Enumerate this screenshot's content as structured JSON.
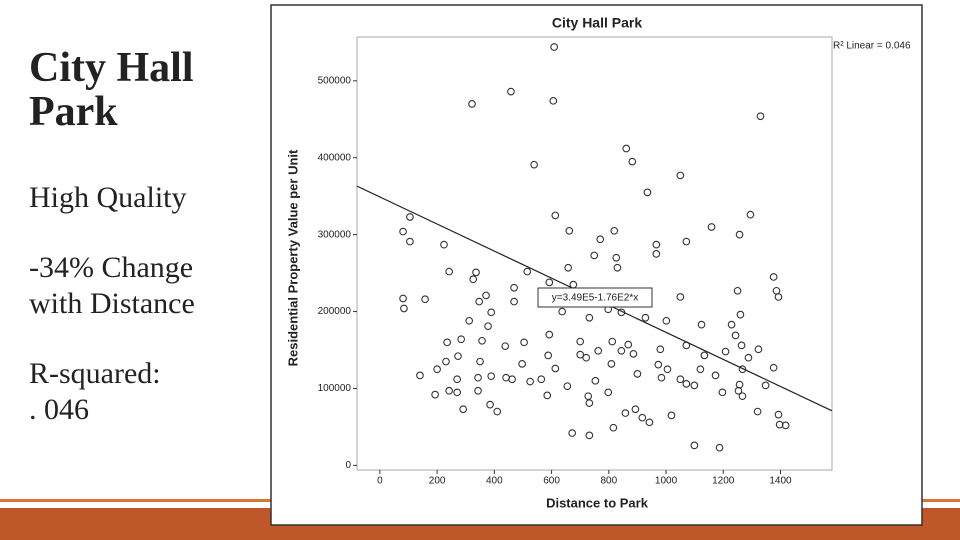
{
  "slide": {
    "title": "City Hall\nPark",
    "points": [
      "High Quality",
      "-34% Change\nwith Distance",
      "R-squared:\n. 046"
    ]
  },
  "chart_data": {
    "type": "scatter",
    "title": "City Hall Park",
    "x_label": "Distance to Park",
    "y_label": "Residential Property Value per Unit",
    "r2_label": "R² Linear = 0.046",
    "equation_label": "y=3.49E5-1.76E2*x",
    "fit": {
      "intercept": 349000,
      "slope": -176
    },
    "xlim": [
      -80,
      1580
    ],
    "ylim": [
      -6000,
      557000
    ],
    "xticks": [
      0,
      200,
      400,
      600,
      800,
      1000,
      1200,
      1400
    ],
    "yticks": [
      0,
      100000,
      200000,
      300000,
      400000,
      500000
    ],
    "color": "#333333",
    "line_color": "#222222",
    "x": [
      609,
      322,
      458,
      606,
      1330,
      861,
      882,
      539,
      1050,
      935,
      105,
      81,
      105,
      224,
      613,
      662,
      819,
      770,
      966,
      966,
      1071,
      1159,
      1295,
      1257,
      826,
      830,
      749,
      658,
      515,
      242,
      336,
      81,
      84,
      158,
      326,
      347,
      371,
      389,
      312,
      378,
      469,
      469,
      592,
      676,
      767,
      844,
      928,
      1050,
      1250,
      1260,
      1376,
      1386,
      1393,
      1124,
      1001,
      798,
      732,
      637,
      592,
      438,
      357,
      284,
      235,
      273,
      231,
      200,
      140,
      270,
      350,
      343,
      504,
      497,
      588,
      525,
      462,
      564,
      585,
      613,
      700,
      721,
      763,
      812,
      844,
      886,
      809,
      753,
      728,
      655,
      732,
      798,
      900,
      973,
      1005,
      984,
      1050,
      1071,
      1099,
      1120,
      1173,
      1197,
      1253,
      1267,
      1288,
      1323,
      1264,
      1243,
      1229,
      1257,
      1267,
      1320,
      1348,
      1376,
      1393,
      1397,
      1418,
      1099,
      1187,
      672,
      732,
      816,
      858,
      917,
      942,
      893,
      1019,
      385,
      410,
      291,
      242,
      343,
      389,
      441,
      193,
      270,
      700,
      868,
      980,
      1134,
      1208,
      1071
    ],
    "values": [
      544000,
      470000,
      486000,
      474000,
      454000,
      412000,
      395000,
      391000,
      377000,
      355000,
      323000,
      304000,
      291000,
      287000,
      325000,
      305000,
      305000,
      294000,
      287000,
      275000,
      291000,
      310000,
      326000,
      300000,
      270000,
      257000,
      273000,
      257000,
      252000,
      252000,
      251000,
      217000,
      204000,
      216000,
      242000,
      213000,
      221000,
      199000,
      188000,
      181000,
      213000,
      231000,
      238000,
      235000,
      216000,
      199000,
      192000,
      219000,
      227000,
      196000,
      245000,
      227000,
      219000,
      183000,
      188000,
      203000,
      192000,
      200000,
      170000,
      155000,
      162000,
      164000,
      160000,
      142000,
      135000,
      125000,
      117000,
      112000,
      135000,
      114000,
      160000,
      132000,
      143000,
      109000,
      112000,
      112000,
      91000,
      126000,
      161000,
      140000,
      149000,
      161000,
      149000,
      145000,
      132000,
      110000,
      90000,
      103000,
      81000,
      95000,
      119000,
      131000,
      125000,
      114000,
      112000,
      106000,
      104000,
      125000,
      117000,
      95000,
      97000,
      125000,
      140000,
      151000,
      156000,
      169000,
      183000,
      105000,
      90000,
      70000,
      104000,
      127000,
      66000,
      53000,
      52000,
      26000,
      23000,
      42000,
      39000,
      49000,
      68000,
      62000,
      56000,
      73000,
      65000,
      79000,
      70000,
      73000,
      97000,
      97000,
      116000,
      114000,
      92000,
      95000,
      144000,
      157000,
      151000,
      143000,
      148000,
      156000
    ]
  }
}
